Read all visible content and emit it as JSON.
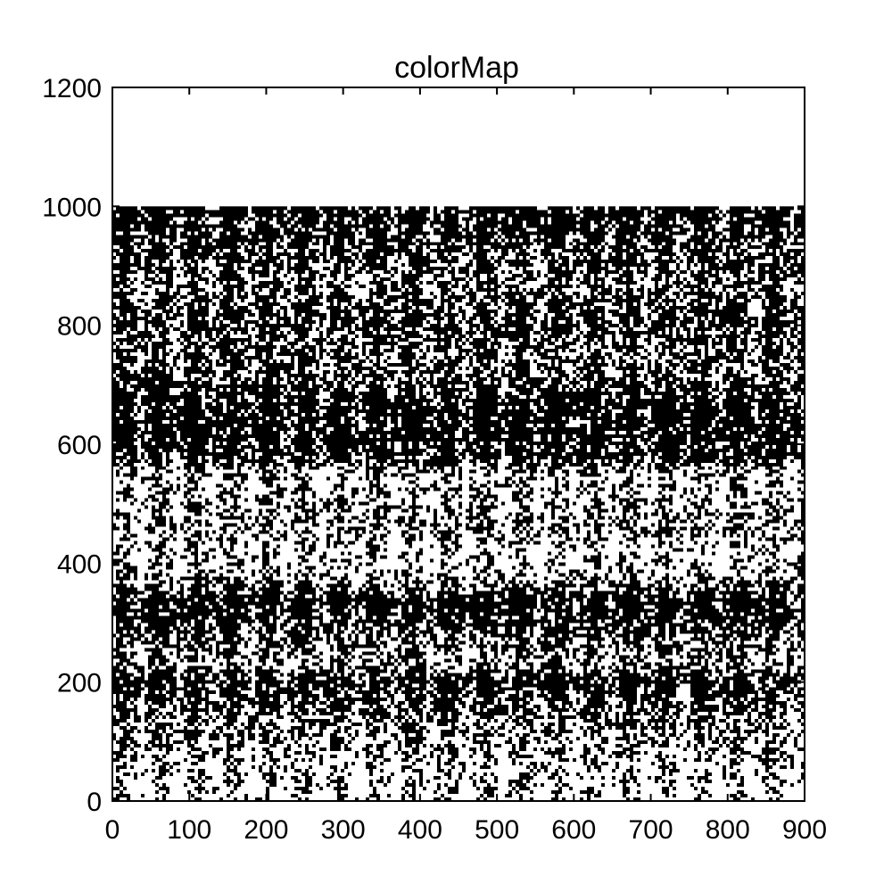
{
  "chart_data": {
    "type": "heatmap",
    "title": "colorMap",
    "xlabel": "",
    "ylabel": "",
    "xlim": [
      0,
      900
    ],
    "ylim": [
      0,
      1200
    ],
    "x_ticks": [
      0,
      100,
      200,
      300,
      400,
      500,
      600,
      700,
      800,
      900
    ],
    "y_ticks": [
      0,
      200,
      400,
      600,
      800,
      1000,
      1200
    ],
    "colormap": [
      "#ffffff",
      "#000000"
    ],
    "grid": false,
    "legend": "none",
    "data_extent": {
      "x": [
        0,
        900
      ],
      "y": [
        0,
        1000
      ]
    },
    "row_density_profile": [
      {
        "y": 0,
        "black_fraction": 0.22
      },
      {
        "y": 50,
        "black_fraction": 0.28
      },
      {
        "y": 100,
        "black_fraction": 0.42
      },
      {
        "y": 150,
        "black_fraction": 0.55
      },
      {
        "y": 200,
        "black_fraction": 0.82
      },
      {
        "y": 240,
        "black_fraction": 0.4
      },
      {
        "y": 300,
        "black_fraction": 0.72
      },
      {
        "y": 340,
        "black_fraction": 0.85
      },
      {
        "y": 380,
        "black_fraction": 0.35
      },
      {
        "y": 420,
        "black_fraction": 0.25
      },
      {
        "y": 460,
        "black_fraction": 0.45
      },
      {
        "y": 500,
        "black_fraction": 0.38
      },
      {
        "y": 540,
        "black_fraction": 0.3
      },
      {
        "y": 580,
        "black_fraction": 0.72
      },
      {
        "y": 620,
        "black_fraction": 0.85
      },
      {
        "y": 680,
        "black_fraction": 0.8
      },
      {
        "y": 720,
        "black_fraction": 0.6
      },
      {
        "y": 760,
        "black_fraction": 0.58
      },
      {
        "y": 820,
        "black_fraction": 0.7
      },
      {
        "y": 860,
        "black_fraction": 0.55
      },
      {
        "y": 900,
        "black_fraction": 0.6
      },
      {
        "y": 950,
        "black_fraction": 0.75
      },
      {
        "y": 1000,
        "black_fraction": 0.85
      }
    ]
  }
}
